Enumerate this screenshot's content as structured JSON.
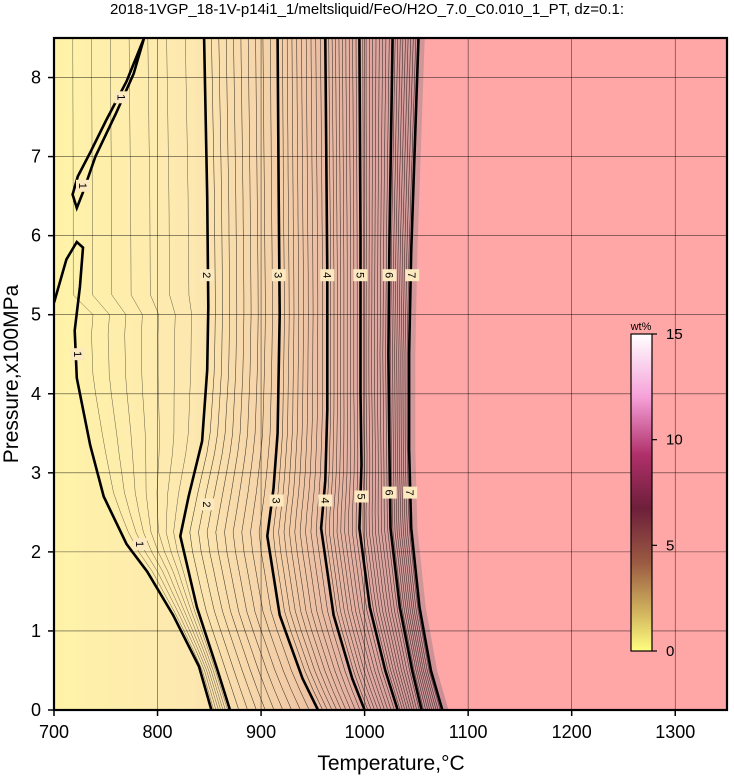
{
  "chart_data": {
    "type": "heatmap",
    "title": "2018-1VGP_18-1V-p14i1_1/meltsliquid/FeO/H2O_7.0_C0.010_1_PT, dz=0.1:",
    "xlabel": "Temperature,°C",
    "ylabel": "Pressure,x100MPa",
    "xlim": [
      700,
      1350
    ],
    "ylim": [
      0,
      8.5
    ],
    "x_ticks": [
      "700",
      "800",
      "900",
      "1000",
      "1100",
      "1200",
      "1300"
    ],
    "y_ticks": [
      "0",
      "1",
      "2",
      "3",
      "4",
      "5",
      "6",
      "7",
      "8"
    ],
    "grid": true,
    "colorbar": {
      "unit": "wt%",
      "range": [
        0,
        15
      ],
      "ticks": [
        "0",
        "5",
        "10",
        "15"
      ],
      "position": "right"
    },
    "no_melt_region": {
      "color": "#ffa6a6"
    },
    "major_contours": [
      {
        "level": "2",
        "points": [
          [
            870,
            0
          ],
          [
            858,
            0.5
          ],
          [
            838,
            1.3
          ],
          [
            822,
            2.2
          ],
          [
            830,
            2.7
          ],
          [
            843,
            3.4
          ],
          [
            848,
            4.3
          ],
          [
            849,
            5.1
          ],
          [
            848,
            6.5
          ],
          [
            845,
            8.5
          ]
        ]
      },
      {
        "level": "3",
        "points": [
          [
            955,
            0
          ],
          [
            940,
            0.4
          ],
          [
            918,
            1.2
          ],
          [
            906,
            2.2
          ],
          [
            912,
            2.8
          ],
          [
            916,
            3.5
          ],
          [
            918,
            5
          ],
          [
            917,
            6.5
          ],
          [
            916,
            8.5
          ]
        ]
      },
      {
        "level": "4",
        "points": [
          [
            1000,
            0
          ],
          [
            988,
            0.4
          ],
          [
            970,
            1.2
          ],
          [
            958,
            2.3
          ],
          [
            962,
            2.9
          ],
          [
            964,
            3.8
          ],
          [
            964,
            5.5
          ],
          [
            962,
            8.5
          ]
        ]
      },
      {
        "level": "5",
        "points": [
          [
            1032,
            0
          ],
          [
            1020,
            0.5
          ],
          [
            1005,
            1.3
          ],
          [
            995,
            2.3
          ],
          [
            997,
            3.1
          ],
          [
            996,
            4
          ],
          [
            996,
            6
          ],
          [
            995,
            8.5
          ]
        ]
      },
      {
        "level": "6",
        "points": [
          [
            1055,
            0
          ],
          [
            1046,
            0.5
          ],
          [
            1034,
            1.3
          ],
          [
            1025,
            2.3
          ],
          [
            1024,
            3.2
          ],
          [
            1023,
            4.5
          ],
          [
            1024,
            6
          ],
          [
            1027,
            8.5
          ]
        ]
      },
      {
        "level": "7",
        "points": [
          [
            1075,
            0
          ],
          [
            1064,
            0.5
          ],
          [
            1053,
            1.3
          ],
          [
            1045,
            2.3
          ],
          [
            1043,
            3.3
          ],
          [
            1043,
            4.5
          ],
          [
            1045,
            5.8
          ],
          [
            1052,
            8.5
          ]
        ]
      }
    ],
    "contour_one_upper": [
      [
        787,
        8.5
      ],
      [
        770,
        7.95
      ],
      [
        750,
        7.45
      ],
      [
        735,
        7.05
      ],
      [
        723,
        6.75
      ],
      [
        718,
        6.52
      ],
      [
        722,
        6.35
      ],
      [
        728,
        6.55
      ],
      [
        740,
        7.0
      ],
      [
        760,
        7.55
      ],
      [
        777,
        8.05
      ],
      [
        787,
        8.5
      ]
    ],
    "contour_one_lower": [
      [
        700,
        5.15
      ],
      [
        712,
        5.7
      ],
      [
        722,
        5.92
      ],
      [
        728,
        5.85
      ],
      [
        725,
        5.35
      ],
      [
        720,
        4.8
      ],
      [
        722,
        4.2
      ],
      [
        735,
        3.35
      ],
      [
        748,
        2.7
      ],
      [
        770,
        2.1
      ],
      [
        790,
        1.75
      ],
      [
        815,
        1.2
      ],
      [
        840,
        0.55
      ],
      [
        852,
        0
      ]
    ],
    "contour_labels": [
      {
        "text": "1",
        "x": 765,
        "y": 7.75
      },
      {
        "text": "1",
        "x": 728,
        "y": 6.63
      },
      {
        "text": "1",
        "x": 723,
        "y": 4.5
      },
      {
        "text": "1",
        "x": 783,
        "y": 2.1
      },
      {
        "text": "2",
        "x": 848,
        "y": 5.5
      },
      {
        "text": "2",
        "x": 848,
        "y": 2.6
      },
      {
        "text": "3",
        "x": 917,
        "y": 5.5
      },
      {
        "text": "3",
        "x": 915,
        "y": 2.65
      },
      {
        "text": "4",
        "x": 964,
        "y": 5.5
      },
      {
        "text": "4",
        "x": 962,
        "y": 2.65
      },
      {
        "text": "5",
        "x": 996,
        "y": 5.5
      },
      {
        "text": "5",
        "x": 997,
        "y": 2.7
      },
      {
        "text": "6",
        "x": 1024,
        "y": 5.5
      },
      {
        "text": "6",
        "x": 1024,
        "y": 2.75
      },
      {
        "text": "7",
        "x": 1046,
        "y": 5.5
      },
      {
        "text": "7",
        "x": 1044,
        "y": 2.75
      }
    ]
  }
}
